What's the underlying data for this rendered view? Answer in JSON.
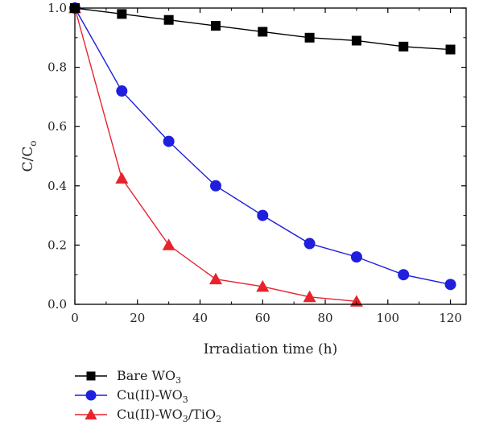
{
  "chart_data": {
    "type": "line",
    "title": "",
    "xlabel": "Irradiation time (h)",
    "ylabel": "C/C",
    "ylabel_sub": "o",
    "xlim": [
      0,
      125
    ],
    "ylim": [
      0,
      1.0
    ],
    "xticks": [
      "0",
      "20",
      "40",
      "60",
      "80",
      "100",
      "120"
    ],
    "yticks": [
      "0.0",
      "0.2",
      "0.4",
      "0.6",
      "0.8",
      "1.0"
    ],
    "legend_position": "bottom-left",
    "series": [
      {
        "name": "Bare WO3",
        "legend_base": "Bare WO",
        "legend_sub": "3",
        "legend_suffix": "",
        "legend_sub2": "",
        "color": "#000000",
        "marker": "square",
        "x": [
          0,
          15,
          30,
          45,
          60,
          75,
          90,
          105,
          120
        ],
        "y": [
          1.0,
          0.98,
          0.96,
          0.94,
          0.92,
          0.9,
          0.89,
          0.87,
          0.86
        ]
      },
      {
        "name": "Cu(II)-WO3",
        "legend_base": "Cu(II)-WO",
        "legend_sub": "3",
        "legend_suffix": "",
        "legend_sub2": "",
        "color": "#1f1fdd",
        "marker": "circle",
        "x": [
          0,
          15,
          30,
          45,
          60,
          75,
          90,
          105,
          120
        ],
        "y": [
          1.0,
          0.72,
          0.55,
          0.4,
          0.3,
          0.205,
          0.16,
          0.1,
          0.067
        ]
      },
      {
        "name": "Cu(II)-WO3/TiO2",
        "legend_base": "Cu(II)-WO",
        "legend_sub": "3",
        "legend_suffix": "/TiO",
        "legend_sub2": "2",
        "color": "#e8232b",
        "marker": "triangle",
        "x": [
          0,
          15,
          30,
          45,
          60,
          75,
          90
        ],
        "y": [
          1.0,
          0.425,
          0.2,
          0.085,
          0.06,
          0.025,
          0.01
        ]
      }
    ]
  }
}
